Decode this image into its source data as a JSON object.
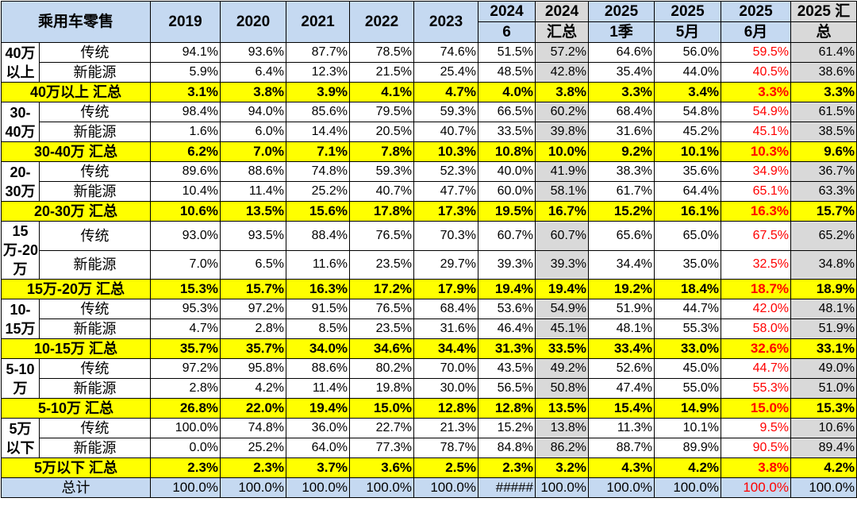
{
  "header": {
    "corner": "乘用车零售",
    "cols": [
      {
        "l1": "2019",
        "l2": ""
      },
      {
        "l1": "2020",
        "l2": ""
      },
      {
        "l1": "2021",
        "l2": ""
      },
      {
        "l1": "2022",
        "l2": ""
      },
      {
        "l1": "2023",
        "l2": ""
      },
      {
        "l1": "2024",
        "l2": "6"
      },
      {
        "l1": "2024",
        "l2": "汇总"
      },
      {
        "l1": "2025",
        "l2": "1季"
      },
      {
        "l1": "2025",
        "l2": "5月"
      },
      {
        "l1": "2025",
        "l2": "6月"
      },
      {
        "l1": "2025 汇",
        "l2": "总"
      }
    ]
  },
  "groups": [
    {
      "label": "40万以上",
      "rows": [
        {
          "type": "传统",
          "values": [
            "94.1%",
            "93.6%",
            "87.7%",
            "78.5%",
            "74.6%",
            "51.5%",
            "57.2%",
            "64.6%",
            "56.0%",
            "59.5%",
            "61.4%"
          ]
        },
        {
          "type": "新能源",
          "values": [
            "5.9%",
            "6.4%",
            "12.3%",
            "21.5%",
            "25.4%",
            "48.5%",
            "42.8%",
            "35.4%",
            "44.0%",
            "40.5%",
            "38.6%"
          ]
        }
      ],
      "summary": {
        "label": "40万以上 汇总",
        "values": [
          "3.1%",
          "3.8%",
          "3.9%",
          "4.1%",
          "4.7%",
          "4.0%",
          "3.8%",
          "3.3%",
          "3.4%",
          "3.3%",
          "3.3%"
        ]
      }
    },
    {
      "label": "30-40万",
      "rows": [
        {
          "type": "传统",
          "values": [
            "98.4%",
            "94.0%",
            "85.6%",
            "79.5%",
            "59.3%",
            "66.5%",
            "60.2%",
            "68.4%",
            "54.8%",
            "54.9%",
            "61.5%"
          ]
        },
        {
          "type": "新能源",
          "values": [
            "1.6%",
            "6.0%",
            "14.4%",
            "20.5%",
            "40.7%",
            "33.5%",
            "39.8%",
            "31.6%",
            "45.2%",
            "45.1%",
            "38.5%"
          ]
        }
      ],
      "summary": {
        "label": "30-40万 汇总",
        "values": [
          "6.2%",
          "7.0%",
          "7.1%",
          "7.8%",
          "10.3%",
          "10.8%",
          "10.0%",
          "9.2%",
          "10.1%",
          "10.3%",
          "9.6%"
        ]
      }
    },
    {
      "label": "20-30万",
      "rows": [
        {
          "type": "传统",
          "values": [
            "89.6%",
            "88.6%",
            "74.8%",
            "59.3%",
            "52.3%",
            "40.0%",
            "41.9%",
            "38.3%",
            "35.6%",
            "34.9%",
            "36.7%"
          ]
        },
        {
          "type": "新能源",
          "values": [
            "10.4%",
            "11.4%",
            "25.2%",
            "40.7%",
            "47.7%",
            "60.0%",
            "58.1%",
            "61.7%",
            "64.4%",
            "65.1%",
            "63.3%"
          ]
        }
      ],
      "summary": {
        "label": "20-30万 汇总",
        "values": [
          "10.6%",
          "13.5%",
          "15.6%",
          "17.8%",
          "17.3%",
          "19.5%",
          "16.7%",
          "15.2%",
          "16.1%",
          "16.3%",
          "15.7%"
        ]
      }
    },
    {
      "label": "15万-20万",
      "rows": [
        {
          "type": "传统",
          "values": [
            "93.0%",
            "93.5%",
            "88.4%",
            "76.5%",
            "70.3%",
            "60.7%",
            "60.7%",
            "65.6%",
            "65.0%",
            "67.5%",
            "65.2%"
          ]
        },
        {
          "type": "新能源",
          "values": [
            "7.0%",
            "6.5%",
            "11.6%",
            "23.5%",
            "29.7%",
            "39.3%",
            "39.3%",
            "34.4%",
            "35.0%",
            "32.5%",
            "34.8%"
          ]
        }
      ],
      "summary": {
        "label": "15万-20万 汇总",
        "values": [
          "15.3%",
          "15.7%",
          "16.3%",
          "17.2%",
          "17.9%",
          "19.4%",
          "19.4%",
          "19.2%",
          "18.4%",
          "18.7%",
          "18.9%"
        ]
      }
    },
    {
      "label": "10-15万",
      "rows": [
        {
          "type": "传统",
          "values": [
            "95.3%",
            "97.2%",
            "91.5%",
            "76.5%",
            "68.4%",
            "53.6%",
            "54.9%",
            "51.9%",
            "44.7%",
            "42.0%",
            "48.1%"
          ]
        },
        {
          "type": "新能源",
          "values": [
            "4.7%",
            "2.8%",
            "8.5%",
            "23.5%",
            "31.6%",
            "46.4%",
            "45.1%",
            "48.1%",
            "55.3%",
            "58.0%",
            "51.9%"
          ]
        }
      ],
      "summary": {
        "label": "10-15万 汇总",
        "values": [
          "35.7%",
          "35.7%",
          "34.0%",
          "34.6%",
          "34.4%",
          "31.3%",
          "33.5%",
          "33.4%",
          "33.0%",
          "32.6%",
          "33.1%"
        ]
      }
    },
    {
      "label": "5-10万",
      "rows": [
        {
          "type": "传统",
          "values": [
            "97.2%",
            "95.8%",
            "88.6%",
            "80.2%",
            "70.0%",
            "43.5%",
            "49.2%",
            "52.6%",
            "45.0%",
            "44.7%",
            "49.0%"
          ]
        },
        {
          "type": "新能源",
          "values": [
            "2.8%",
            "4.2%",
            "11.4%",
            "19.8%",
            "30.0%",
            "56.5%",
            "50.8%",
            "47.4%",
            "55.0%",
            "55.3%",
            "51.0%"
          ]
        }
      ],
      "summary": {
        "label": "5-10万 汇总",
        "values": [
          "26.8%",
          "22.0%",
          "19.4%",
          "15.0%",
          "12.8%",
          "12.8%",
          "13.5%",
          "15.4%",
          "14.9%",
          "15.0%",
          "15.3%"
        ]
      }
    },
    {
      "label": "5万以下",
      "rows": [
        {
          "type": "传统",
          "values": [
            "100.0%",
            "74.8%",
            "36.0%",
            "22.7%",
            "21.3%",
            "15.2%",
            "13.8%",
            "11.3%",
            "10.1%",
            "9.5%",
            "10.6%"
          ]
        },
        {
          "type": "新能源",
          "values": [
            "0.0%",
            "25.2%",
            "64.0%",
            "77.3%",
            "78.7%",
            "84.8%",
            "86.2%",
            "88.7%",
            "89.9%",
            "90.5%",
            "89.4%"
          ]
        }
      ],
      "summary": {
        "label": "5万以下 汇总",
        "values": [
          "2.3%",
          "2.3%",
          "3.7%",
          "3.6%",
          "2.5%",
          "2.3%",
          "3.2%",
          "4.3%",
          "4.2%",
          "3.8%",
          "4.2%"
        ]
      }
    }
  ],
  "total": {
    "label": "总计",
    "values": [
      "100.0%",
      "100.0%",
      "100.0%",
      "100.0%",
      "100.0%",
      "#####",
      "100.0%",
      "100.0%",
      "100.0%",
      "100.0%",
      "100.0%"
    ]
  },
  "colors": {
    "header_bg": "#c5d9f1",
    "summary_bg": "#ffff00",
    "shade_bg": "#d9d9d9",
    "highlight_text": "#ff0000"
  }
}
